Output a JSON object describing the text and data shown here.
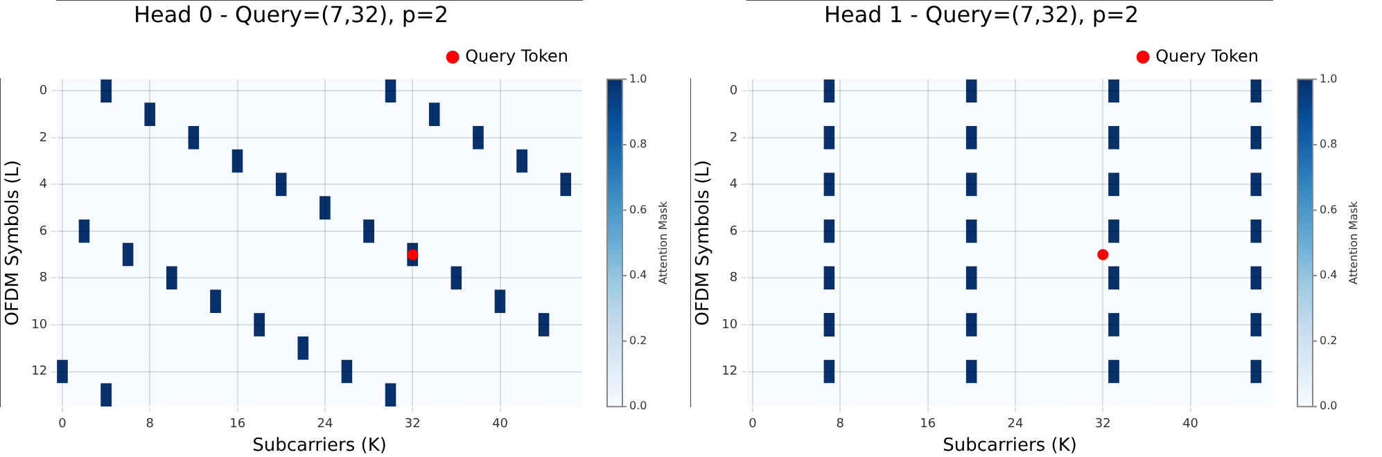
{
  "chart_data": [
    {
      "type": "heatmap",
      "title": "Head 0 - Query=(7,32), p=2",
      "xlabel": "Subcarriers (K)",
      "ylabel": "OFDM Symbols (L)",
      "clabel": "Attention Mask",
      "xlim": [
        -0.5,
        47.5
      ],
      "xticks": [
        0,
        8,
        16,
        24,
        32,
        40
      ],
      "ylim": [
        13.5,
        -0.5
      ],
      "yticks": [
        0,
        2,
        4,
        6,
        8,
        10,
        12
      ],
      "clim": [
        0,
        1
      ],
      "cticks": [
        {
          "value": 0,
          "label": "0.0"
        },
        {
          "value": 0.2,
          "label": "0.2"
        },
        {
          "value": 0.4,
          "label": "0.4"
        },
        {
          "value": 0.6,
          "label": "0.6"
        },
        {
          "value": 0.8,
          "label": "0.8"
        },
        {
          "value": 1,
          "label": "1.0"
        }
      ],
      "grid": true,
      "legend": "top right",
      "cells": [
        [
          0,
          0,
          0,
          0,
          1,
          0,
          0,
          0,
          0,
          0,
          0,
          0,
          0,
          0,
          0,
          0,
          0,
          0,
          0,
          0,
          0,
          0,
          0,
          0,
          0,
          0,
          0,
          0,
          0,
          0,
          1,
          0,
          0,
          0,
          0,
          0,
          0,
          0,
          0,
          0,
          0,
          0,
          0,
          0,
          0,
          0,
          0,
          0
        ],
        [
          0,
          0,
          0,
          0,
          0,
          0,
          0,
          0,
          1,
          0,
          0,
          0,
          0,
          0,
          0,
          0,
          0,
          0,
          0,
          0,
          0,
          0,
          0,
          0,
          0,
          0,
          0,
          0,
          0,
          0,
          0,
          0,
          0,
          0,
          1,
          0,
          0,
          0,
          0,
          0,
          0,
          0,
          0,
          0,
          0,
          0,
          0,
          0
        ],
        [
          0,
          0,
          0,
          0,
          0,
          0,
          0,
          0,
          0,
          0,
          0,
          0,
          1,
          0,
          0,
          0,
          0,
          0,
          0,
          0,
          0,
          0,
          0,
          0,
          0,
          0,
          0,
          0,
          0,
          0,
          0,
          0,
          0,
          0,
          0,
          0,
          0,
          0,
          1,
          0,
          0,
          0,
          0,
          0,
          0,
          0,
          0,
          0
        ],
        [
          0,
          0,
          0,
          0,
          0,
          0,
          0,
          0,
          0,
          0,
          0,
          0,
          0,
          0,
          0,
          0,
          1,
          0,
          0,
          0,
          0,
          0,
          0,
          0,
          0,
          0,
          0,
          0,
          0,
          0,
          0,
          0,
          0,
          0,
          0,
          0,
          0,
          0,
          0,
          0,
          0,
          0,
          1,
          0,
          0,
          0,
          0,
          0
        ],
        [
          0,
          0,
          0,
          0,
          0,
          0,
          0,
          0,
          0,
          0,
          0,
          0,
          0,
          0,
          0,
          0,
          0,
          0,
          0,
          0,
          1,
          0,
          0,
          0,
          0,
          0,
          0,
          0,
          0,
          0,
          0,
          0,
          0,
          0,
          0,
          0,
          0,
          0,
          0,
          0,
          0,
          0,
          0,
          0,
          0,
          0,
          1,
          0
        ],
        [
          0,
          0,
          0,
          0,
          0,
          0,
          0,
          0,
          0,
          0,
          0,
          0,
          0,
          0,
          0,
          0,
          0,
          0,
          0,
          0,
          0,
          0,
          0,
          0,
          1,
          0,
          0,
          0,
          0,
          0,
          0,
          0,
          0,
          0,
          0,
          0,
          0,
          0,
          0,
          0,
          0,
          0,
          0,
          0,
          0,
          0,
          0,
          0
        ],
        [
          0,
          0,
          1,
          0,
          0,
          0,
          0,
          0,
          0,
          0,
          0,
          0,
          0,
          0,
          0,
          0,
          0,
          0,
          0,
          0,
          0,
          0,
          0,
          0,
          0,
          0,
          0,
          0,
          1,
          0,
          0,
          0,
          0,
          0,
          0,
          0,
          0,
          0,
          0,
          0,
          0,
          0,
          0,
          0,
          0,
          0,
          0,
          0
        ],
        [
          0,
          0,
          0,
          0,
          0,
          0,
          1,
          0,
          0,
          0,
          0,
          0,
          0,
          0,
          0,
          0,
          0,
          0,
          0,
          0,
          0,
          0,
          0,
          0,
          0,
          0,
          0,
          0,
          0,
          0,
          0,
          0,
          1,
          0,
          0,
          0,
          0,
          0,
          0,
          0,
          0,
          0,
          0,
          0,
          0,
          0,
          0,
          0
        ],
        [
          0,
          0,
          0,
          0,
          0,
          0,
          0,
          0,
          0,
          0,
          1,
          0,
          0,
          0,
          0,
          0,
          0,
          0,
          0,
          0,
          0,
          0,
          0,
          0,
          0,
          0,
          0,
          0,
          0,
          0,
          0,
          0,
          0,
          0,
          0,
          0,
          1,
          0,
          0,
          0,
          0,
          0,
          0,
          0,
          0,
          0,
          0,
          0
        ],
        [
          0,
          0,
          0,
          0,
          0,
          0,
          0,
          0,
          0,
          0,
          0,
          0,
          0,
          0,
          1,
          0,
          0,
          0,
          0,
          0,
          0,
          0,
          0,
          0,
          0,
          0,
          0,
          0,
          0,
          0,
          0,
          0,
          0,
          0,
          0,
          0,
          0,
          0,
          0,
          0,
          1,
          0,
          0,
          0,
          0,
          0,
          0,
          0
        ],
        [
          0,
          0,
          0,
          0,
          0,
          0,
          0,
          0,
          0,
          0,
          0,
          0,
          0,
          0,
          0,
          0,
          0,
          0,
          1,
          0,
          0,
          0,
          0,
          0,
          0,
          0,
          0,
          0,
          0,
          0,
          0,
          0,
          0,
          0,
          0,
          0,
          0,
          0,
          0,
          0,
          0,
          0,
          0,
          0,
          1,
          0,
          0,
          0
        ],
        [
          0,
          0,
          0,
          0,
          0,
          0,
          0,
          0,
          0,
          0,
          0,
          0,
          0,
          0,
          0,
          0,
          0,
          0,
          0,
          0,
          0,
          0,
          1,
          0,
          0,
          0,
          0,
          0,
          0,
          0,
          0,
          0,
          0,
          0,
          0,
          0,
          0,
          0,
          0,
          0,
          0,
          0,
          0,
          0,
          0,
          0,
          0,
          0
        ],
        [
          1,
          0,
          0,
          0,
          0,
          0,
          0,
          0,
          0,
          0,
          0,
          0,
          0,
          0,
          0,
          0,
          0,
          0,
          0,
          0,
          0,
          0,
          0,
          0,
          0,
          0,
          1,
          0,
          0,
          0,
          0,
          0,
          0,
          0,
          0,
          0,
          0,
          0,
          0,
          0,
          0,
          0,
          0,
          0,
          0,
          0,
          0,
          0
        ],
        [
          0,
          0,
          0,
          0,
          1,
          0,
          0,
          0,
          0,
          0,
          0,
          0,
          0,
          0,
          0,
          0,
          0,
          0,
          0,
          0,
          0,
          0,
          0,
          0,
          0,
          0,
          0,
          0,
          0,
          0,
          1,
          0,
          0,
          0,
          0,
          0,
          0,
          0,
          0,
          0,
          0,
          0,
          0,
          0,
          0,
          0,
          0,
          0
        ]
      ],
      "series": [
        {
          "type": "scatter",
          "name": "Query Token",
          "color": "#ff0000",
          "marker": "circle",
          "x": [
            32
          ],
          "values": [
            7
          ]
        }
      ]
    },
    {
      "type": "heatmap",
      "title": "Head 1 - Query=(7,32), p=2",
      "xlabel": "Subcarriers (K)",
      "ylabel": "OFDM Symbols (L)",
      "clabel": "Attention Mask",
      "xlim": [
        -0.5,
        47.5
      ],
      "xticks": [
        0,
        8,
        16,
        24,
        32,
        40
      ],
      "ylim": [
        13.5,
        -0.5
      ],
      "yticks": [
        0,
        2,
        4,
        6,
        8,
        10,
        12
      ],
      "clim": [
        0,
        1
      ],
      "cticks": [
        {
          "value": 0,
          "label": "0.0"
        },
        {
          "value": 0.2,
          "label": "0.2"
        },
        {
          "value": 0.4,
          "label": "0.4"
        },
        {
          "value": 0.6,
          "label": "0.6"
        },
        {
          "value": 0.8,
          "label": "0.8"
        },
        {
          "value": 1,
          "label": "1.0"
        }
      ],
      "grid": true,
      "legend": "top right",
      "cells": [
        [
          0,
          0,
          0,
          0,
          0,
          0,
          0,
          1,
          0,
          0,
          0,
          0,
          0,
          0,
          0,
          0,
          0,
          0,
          0,
          0,
          1,
          0,
          0,
          0,
          0,
          0,
          0,
          0,
          0,
          0,
          0,
          0,
          0,
          1,
          0,
          0,
          0,
          0,
          0,
          0,
          0,
          0,
          0,
          0,
          0,
          0,
          1,
          0
        ],
        [
          0,
          0,
          0,
          0,
          0,
          0,
          0,
          0,
          0,
          0,
          0,
          0,
          0,
          0,
          0,
          0,
          0,
          0,
          0,
          0,
          0,
          0,
          0,
          0,
          0,
          0,
          0,
          0,
          0,
          0,
          0,
          0,
          0,
          0,
          0,
          0,
          0,
          0,
          0,
          0,
          0,
          0,
          0,
          0,
          0,
          0,
          0,
          0
        ],
        [
          0,
          0,
          0,
          0,
          0,
          0,
          0,
          1,
          0,
          0,
          0,
          0,
          0,
          0,
          0,
          0,
          0,
          0,
          0,
          0,
          1,
          0,
          0,
          0,
          0,
          0,
          0,
          0,
          0,
          0,
          0,
          0,
          0,
          1,
          0,
          0,
          0,
          0,
          0,
          0,
          0,
          0,
          0,
          0,
          0,
          0,
          1,
          0
        ],
        [
          0,
          0,
          0,
          0,
          0,
          0,
          0,
          0,
          0,
          0,
          0,
          0,
          0,
          0,
          0,
          0,
          0,
          0,
          0,
          0,
          0,
          0,
          0,
          0,
          0,
          0,
          0,
          0,
          0,
          0,
          0,
          0,
          0,
          0,
          0,
          0,
          0,
          0,
          0,
          0,
          0,
          0,
          0,
          0,
          0,
          0,
          0,
          0
        ],
        [
          0,
          0,
          0,
          0,
          0,
          0,
          0,
          1,
          0,
          0,
          0,
          0,
          0,
          0,
          0,
          0,
          0,
          0,
          0,
          0,
          1,
          0,
          0,
          0,
          0,
          0,
          0,
          0,
          0,
          0,
          0,
          0,
          0,
          1,
          0,
          0,
          0,
          0,
          0,
          0,
          0,
          0,
          0,
          0,
          0,
          0,
          1,
          0
        ],
        [
          0,
          0,
          0,
          0,
          0,
          0,
          0,
          0,
          0,
          0,
          0,
          0,
          0,
          0,
          0,
          0,
          0,
          0,
          0,
          0,
          0,
          0,
          0,
          0,
          0,
          0,
          0,
          0,
          0,
          0,
          0,
          0,
          0,
          0,
          0,
          0,
          0,
          0,
          0,
          0,
          0,
          0,
          0,
          0,
          0,
          0,
          0,
          0
        ],
        [
          0,
          0,
          0,
          0,
          0,
          0,
          0,
          1,
          0,
          0,
          0,
          0,
          0,
          0,
          0,
          0,
          0,
          0,
          0,
          0,
          1,
          0,
          0,
          0,
          0,
          0,
          0,
          0,
          0,
          0,
          0,
          0,
          0,
          1,
          0,
          0,
          0,
          0,
          0,
          0,
          0,
          0,
          0,
          0,
          0,
          0,
          1,
          0
        ],
        [
          0,
          0,
          0,
          0,
          0,
          0,
          0,
          0,
          0,
          0,
          0,
          0,
          0,
          0,
          0,
          0,
          0,
          0,
          0,
          0,
          0,
          0,
          0,
          0,
          0,
          0,
          0,
          0,
          0,
          0,
          0,
          0,
          0,
          0,
          0,
          0,
          0,
          0,
          0,
          0,
          0,
          0,
          0,
          0,
          0,
          0,
          0,
          0
        ],
        [
          0,
          0,
          0,
          0,
          0,
          0,
          0,
          1,
          0,
          0,
          0,
          0,
          0,
          0,
          0,
          0,
          0,
          0,
          0,
          0,
          1,
          0,
          0,
          0,
          0,
          0,
          0,
          0,
          0,
          0,
          0,
          0,
          0,
          1,
          0,
          0,
          0,
          0,
          0,
          0,
          0,
          0,
          0,
          0,
          0,
          0,
          1,
          0
        ],
        [
          0,
          0,
          0,
          0,
          0,
          0,
          0,
          0,
          0,
          0,
          0,
          0,
          0,
          0,
          0,
          0,
          0,
          0,
          0,
          0,
          0,
          0,
          0,
          0,
          0,
          0,
          0,
          0,
          0,
          0,
          0,
          0,
          0,
          0,
          0,
          0,
          0,
          0,
          0,
          0,
          0,
          0,
          0,
          0,
          0,
          0,
          0,
          0
        ],
        [
          0,
          0,
          0,
          0,
          0,
          0,
          0,
          1,
          0,
          0,
          0,
          0,
          0,
          0,
          0,
          0,
          0,
          0,
          0,
          0,
          1,
          0,
          0,
          0,
          0,
          0,
          0,
          0,
          0,
          0,
          0,
          0,
          0,
          1,
          0,
          0,
          0,
          0,
          0,
          0,
          0,
          0,
          0,
          0,
          0,
          0,
          1,
          0
        ],
        [
          0,
          0,
          0,
          0,
          0,
          0,
          0,
          0,
          0,
          0,
          0,
          0,
          0,
          0,
          0,
          0,
          0,
          0,
          0,
          0,
          0,
          0,
          0,
          0,
          0,
          0,
          0,
          0,
          0,
          0,
          0,
          0,
          0,
          0,
          0,
          0,
          0,
          0,
          0,
          0,
          0,
          0,
          0,
          0,
          0,
          0,
          0,
          0
        ],
        [
          0,
          0,
          0,
          0,
          0,
          0,
          0,
          1,
          0,
          0,
          0,
          0,
          0,
          0,
          0,
          0,
          0,
          0,
          0,
          0,
          1,
          0,
          0,
          0,
          0,
          0,
          0,
          0,
          0,
          0,
          0,
          0,
          0,
          1,
          0,
          0,
          0,
          0,
          0,
          0,
          0,
          0,
          0,
          0,
          0,
          0,
          1,
          0
        ],
        [
          0,
          0,
          0,
          0,
          0,
          0,
          0,
          0,
          0,
          0,
          0,
          0,
          0,
          0,
          0,
          0,
          0,
          0,
          0,
          0,
          0,
          0,
          0,
          0,
          0,
          0,
          0,
          0,
          0,
          0,
          0,
          0,
          0,
          0,
          0,
          0,
          0,
          0,
          0,
          0,
          0,
          0,
          0,
          0,
          0,
          0,
          0,
          0
        ]
      ],
      "series": [
        {
          "type": "scatter",
          "name": "Query Token",
          "color": "#ff0000",
          "marker": "circle",
          "x": [
            32
          ],
          "values": [
            7
          ]
        }
      ]
    }
  ]
}
